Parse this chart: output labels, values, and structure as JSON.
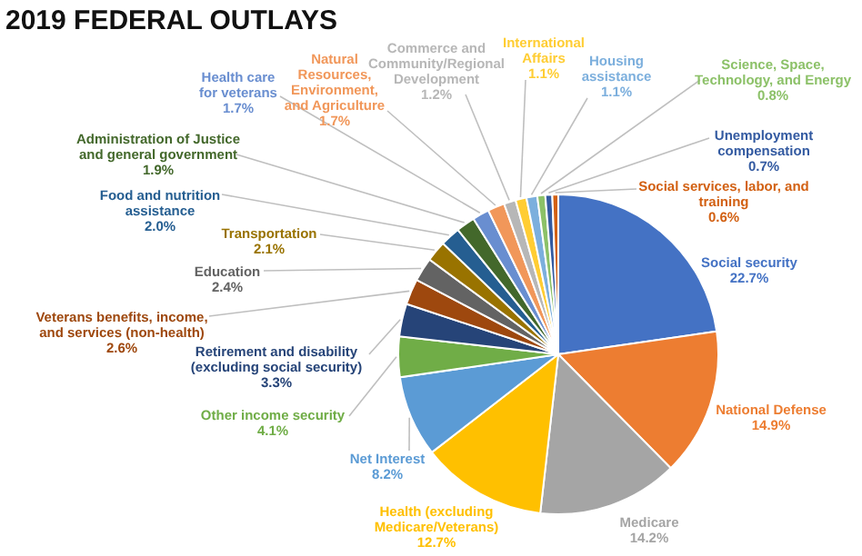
{
  "chart_data": {
    "type": "pie",
    "title": "2019 FEDERAL OUTLAYS",
    "categories": [
      "Social security",
      "National Defense",
      "Medicare",
      "Health (excluding Medicare/Veterans)",
      "Net Interest",
      "Other income security",
      "Retirement and disability (excluding social security)",
      "Veterans benefits, income, and services (non-health)",
      "Education",
      "Transportation",
      "Food and nutrition assistance",
      "Administration of Justice and general government",
      "Health care for veterans",
      "Natural Resources, Environment, and Agriculture",
      "Commerce and Community/Regional Development",
      "International Affairs",
      "Housing assistance",
      "Science, Space, Technology, and Energy",
      "Unemployment compensation",
      "Social services, labor, and training"
    ],
    "values": [
      22.7,
      14.9,
      14.2,
      12.7,
      8.2,
      4.1,
      3.3,
      2.6,
      2.4,
      2.1,
      2.0,
      1.9,
      1.7,
      1.7,
      1.2,
      1.1,
      1.1,
      0.8,
      0.7,
      0.6
    ],
    "value_labels": [
      "22.7%",
      "14.9%",
      "14.2%",
      "12.7%",
      "8.2%",
      "4.1%",
      "3.3%",
      "2.6%",
      "2.4%",
      "2.1%",
      "2.0%",
      "1.9%",
      "1.7%",
      "1.7%",
      "1.2%",
      "1.1%",
      "1.1%",
      "0.8%",
      "0.7%",
      "0.6%"
    ],
    "colors": [
      "#4472c4",
      "#ed7d31",
      "#a5a5a5",
      "#ffc000",
      "#5b9bd5",
      "#70ad47",
      "#264478",
      "#9e480e",
      "#636363",
      "#997300",
      "#255e91",
      "#43682b",
      "#698ed0",
      "#f1975a",
      "#b7b7b7",
      "#ffcd33",
      "#7cafdd",
      "#8cc168",
      "#335aa1",
      "#d26012"
    ]
  }
}
